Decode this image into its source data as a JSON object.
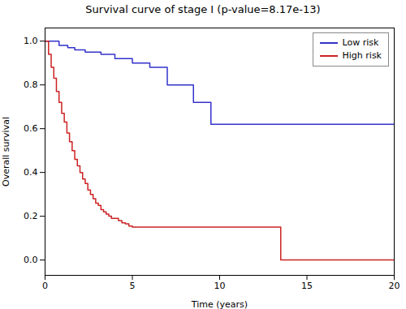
{
  "chart_data": {
    "type": "step",
    "title": "Survival curve of stage I (p-value=8.17e-13)",
    "xlabel": "Time (years)",
    "ylabel": "Overall survival",
    "xlim": [
      0,
      20
    ],
    "ylim": [
      -0.07,
      1.06
    ],
    "xticks": [
      0,
      5,
      10,
      15,
      20
    ],
    "yticks": [
      {
        "value": 0.0,
        "label": "0.0"
      },
      0.2,
      0.4,
      0.6,
      0.8,
      {
        "value": 1.0,
        "label": "1.0"
      }
    ],
    "grid": false,
    "legend": "upper right",
    "series": [
      {
        "name": "Low risk",
        "color": "#3333CC",
        "x": [
          0,
          0.5,
          0.8,
          1.0,
          1.3,
          1.5,
          1.7,
          2.0,
          2.3,
          2.8,
          3.2,
          3.5,
          4.0,
          4.5,
          5.0,
          5.5,
          6.0,
          6.5,
          7.0,
          7.5,
          8.0,
          8.5,
          9.0,
          9.5,
          10.0,
          20.0
        ],
        "values": [
          1.0,
          1.0,
          0.98,
          0.98,
          0.97,
          0.97,
          0.96,
          0.96,
          0.95,
          0.95,
          0.94,
          0.94,
          0.92,
          0.92,
          0.9,
          0.9,
          0.88,
          0.88,
          0.8,
          0.8,
          0.8,
          0.72,
          0.72,
          0.62,
          0.62,
          0.62
        ]
      },
      {
        "name": "High risk",
        "color": "#CC2222",
        "x": [
          0,
          0.2,
          0.35,
          0.5,
          0.65,
          0.8,
          0.95,
          1.1,
          1.25,
          1.4,
          1.55,
          1.7,
          1.85,
          2.0,
          2.15,
          2.3,
          2.45,
          2.6,
          2.75,
          2.9,
          3.05,
          3.2,
          3.35,
          3.5,
          3.65,
          3.8,
          4.0,
          4.2,
          4.4,
          4.6,
          4.8,
          5.0,
          5.3,
          5.6,
          6.0,
          7.0,
          7.5,
          8.0,
          13.0,
          13.5,
          20.0
        ],
        "values": [
          1.0,
          0.94,
          0.88,
          0.83,
          0.77,
          0.72,
          0.67,
          0.63,
          0.58,
          0.54,
          0.5,
          0.46,
          0.43,
          0.4,
          0.37,
          0.35,
          0.32,
          0.3,
          0.28,
          0.26,
          0.25,
          0.23,
          0.22,
          0.21,
          0.2,
          0.19,
          0.19,
          0.18,
          0.17,
          0.165,
          0.155,
          0.15,
          0.15,
          0.15,
          0.15,
          0.15,
          0.15,
          0.15,
          0.15,
          0.0,
          0.0
        ]
      }
    ]
  }
}
